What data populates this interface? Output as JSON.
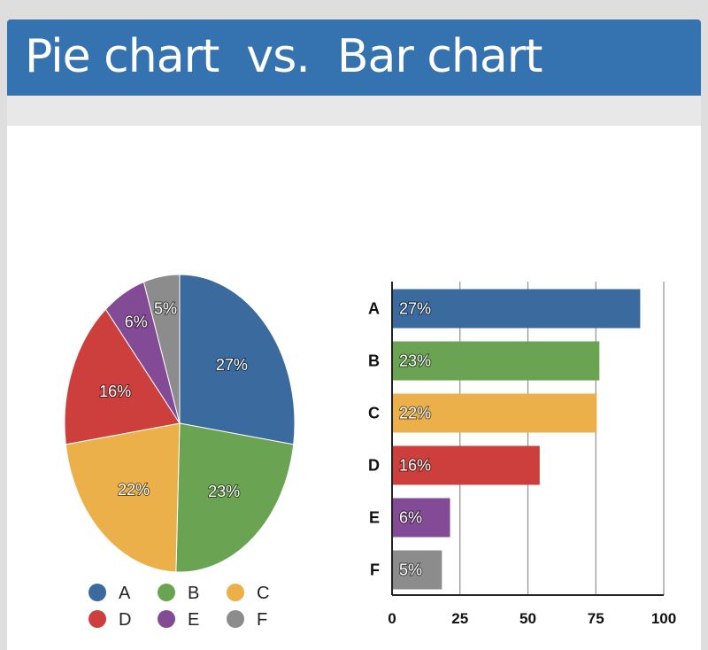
{
  "title": "Pie chart  vs.  Bar chart",
  "colors": {
    "A": "#3a6a9e",
    "B": "#6aa352",
    "C": "#ecb04a",
    "D": "#cc3f3c",
    "E": "#834a95",
    "F": "#8c8c8c"
  },
  "chart_data": [
    {
      "type": "pie",
      "categories": [
        "A",
        "B",
        "C",
        "D",
        "E",
        "F"
      ],
      "values": [
        27,
        23,
        22,
        16,
        6,
        5
      ],
      "labels": [
        "27%",
        "23%",
        "22%",
        "16%",
        "6%",
        "5%"
      ],
      "legend": {
        "placement": "bottom",
        "entries": [
          "A",
          "B",
          "C",
          "D",
          "E",
          "F"
        ]
      }
    },
    {
      "type": "bar",
      "orientation": "horizontal",
      "categories": [
        "A",
        "B",
        "C",
        "D",
        "E",
        "F"
      ],
      "values": [
        91,
        76,
        75,
        54,
        21,
        18
      ],
      "labels": [
        "27%",
        "23%",
        "22%",
        "16%",
        "6%",
        "5%"
      ],
      "xlim": [
        0,
        100
      ],
      "xticks": [
        "0",
        "25",
        "50",
        "75",
        "100"
      ],
      "grid": true
    }
  ]
}
